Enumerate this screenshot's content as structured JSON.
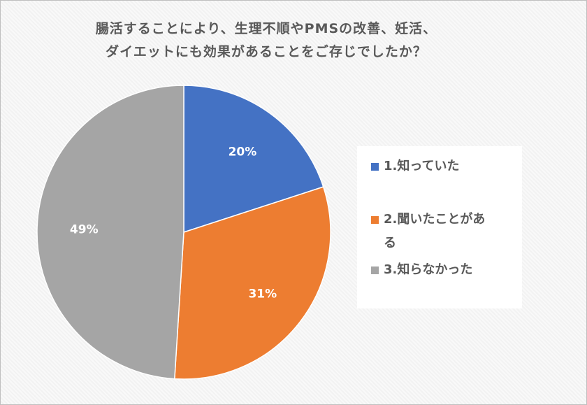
{
  "chart_data": {
    "type": "pie",
    "title_lines": [
      "腸活することにより、生理不順やPMSの改善、妊活、",
      "ダイエットにも効果があることをご存じでしたか？"
    ],
    "categories": [
      "1.知っていた",
      "2.聞いたことがある",
      "3.知らなかった"
    ],
    "values": [
      20,
      31,
      49
    ],
    "labels": [
      "20%",
      "31%",
      "49%"
    ],
    "colors": [
      "#4472c4",
      "#ed7d31",
      "#a5a5a5"
    ],
    "legend_position": "right"
  },
  "legend": {
    "item1": "1.知っていた",
    "item2_line1": "2.聞いたことがあ",
    "item2_line2": "る",
    "item3": "3.知らなかった"
  }
}
